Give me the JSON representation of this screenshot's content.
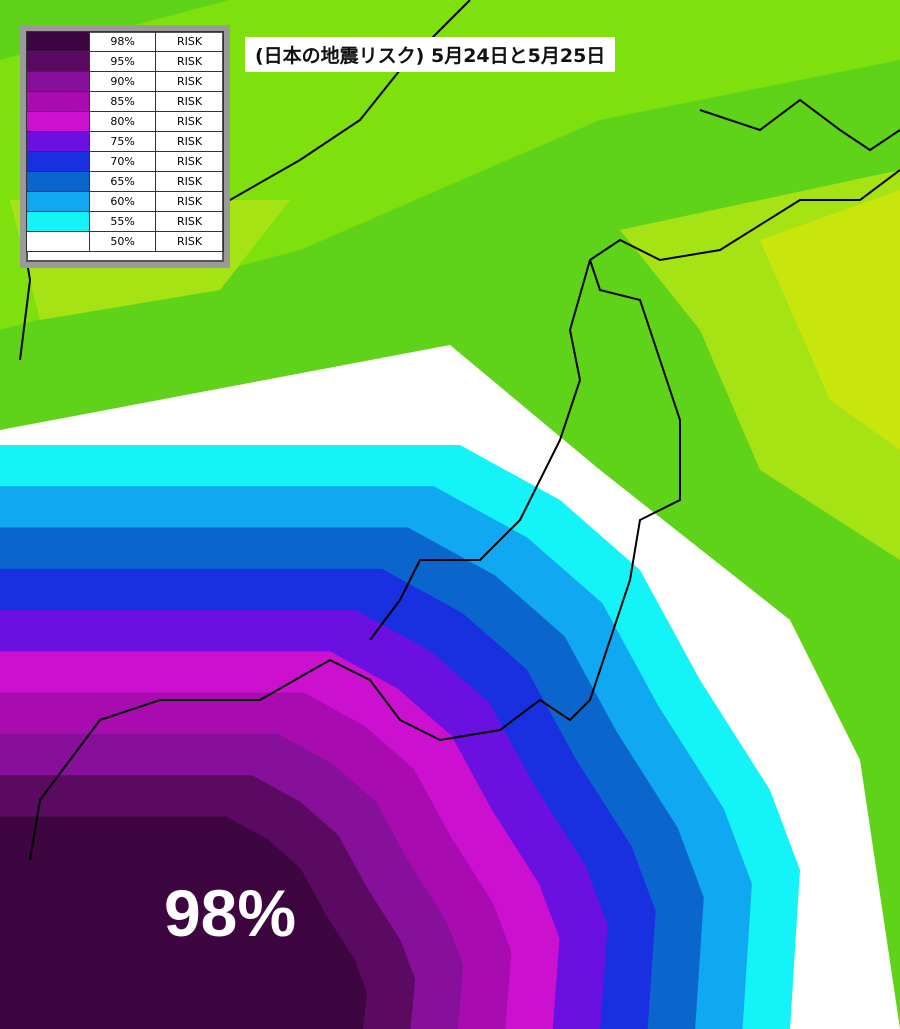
{
  "title": "(日本の地震リスク) 5月24日と5月25日",
  "legend": [
    {
      "percent": "98%",
      "label": "RISK",
      "color": "#3e0640"
    },
    {
      "percent": "95%",
      "label": "RISK",
      "color": "#5a0a60"
    },
    {
      "percent": "90%",
      "label": "RISK",
      "color": "#86109a"
    },
    {
      "percent": "85%",
      "label": "RISK",
      "color": "#a80bb0"
    },
    {
      "percent": "80%",
      "label": "RISK",
      "color": "#cc10d0"
    },
    {
      "percent": "75%",
      "label": "RISK",
      "color": "#6a10e0"
    },
    {
      "percent": "70%",
      "label": "RISK",
      "color": "#1830e0"
    },
    {
      "percent": "65%",
      "label": "RISK",
      "color": "#0a66cc"
    },
    {
      "percent": "60%",
      "label": "RISK",
      "color": "#10a8f0"
    },
    {
      "percent": "55%",
      "label": "RISK",
      "color": "#14f4f8"
    },
    {
      "percent": "50%",
      "label": "RISK",
      "color": "#ffffff"
    }
  ],
  "center_label": "98%"
}
